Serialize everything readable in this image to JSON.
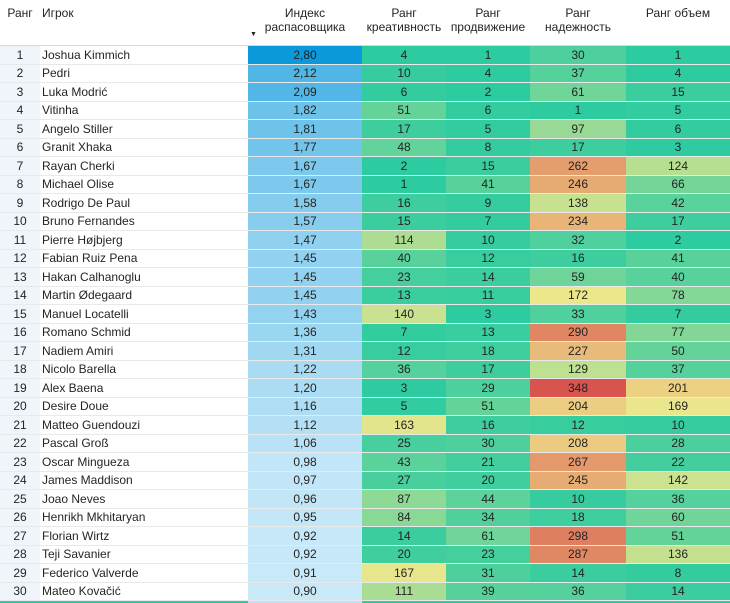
{
  "chart_data": {
    "type": "table",
    "columns": [
      {
        "id": "rank",
        "label": "Ранг",
        "sublabel": "",
        "align": "center",
        "sorted": false
      },
      {
        "id": "player",
        "label": "Игрок",
        "sublabel": "",
        "align": "left",
        "sorted": false
      },
      {
        "id": "index",
        "label": "Индекс",
        "sublabel": "распасовщика",
        "align": "center",
        "sorted": true
      },
      {
        "id": "creativity",
        "label": "Ранг",
        "sublabel": "креативность",
        "align": "center",
        "sorted": false
      },
      {
        "id": "progression",
        "label": "Ранг",
        "sublabel": "продвижение",
        "align": "center",
        "sorted": false
      },
      {
        "id": "reliability",
        "label": "Ранг",
        "sublabel": "надежность",
        "align": "center",
        "sorted": false
      },
      {
        "id": "volume",
        "label": "Ранг объем",
        "sublabel": "",
        "align": "center",
        "sorted": false
      }
    ],
    "rows": [
      {
        "rank": 1,
        "player": "Joshua Kimmich",
        "index": "2,80",
        "creativity": 4,
        "progression": 1,
        "reliability": 30,
        "volume": 1
      },
      {
        "rank": 2,
        "player": "Pedri",
        "index": "2,12",
        "creativity": 10,
        "progression": 4,
        "reliability": 37,
        "volume": 4
      },
      {
        "rank": 3,
        "player": "Luka Modrić",
        "index": "2,09",
        "creativity": 6,
        "progression": 2,
        "reliability": 61,
        "volume": 15
      },
      {
        "rank": 4,
        "player": "Vitinha",
        "index": "1,82",
        "creativity": 51,
        "progression": 6,
        "reliability": 1,
        "volume": 5
      },
      {
        "rank": 5,
        "player": "Angelo Stiller",
        "index": "1,81",
        "creativity": 17,
        "progression": 5,
        "reliability": 97,
        "volume": 6
      },
      {
        "rank": 6,
        "player": "Granit Xhaka",
        "index": "1,77",
        "creativity": 48,
        "progression": 8,
        "reliability": 17,
        "volume": 3
      },
      {
        "rank": 7,
        "player": "Rayan Cherki",
        "index": "1,67",
        "creativity": 2,
        "progression": 15,
        "reliability": 262,
        "volume": 124
      },
      {
        "rank": 8,
        "player": "Michael Olise",
        "index": "1,67",
        "creativity": 1,
        "progression": 41,
        "reliability": 246,
        "volume": 66
      },
      {
        "rank": 9,
        "player": "Rodrigo De Paul",
        "index": "1,58",
        "creativity": 16,
        "progression": 9,
        "reliability": 138,
        "volume": 42
      },
      {
        "rank": 10,
        "player": "Bruno Fernandes",
        "index": "1,57",
        "creativity": 15,
        "progression": 7,
        "reliability": 234,
        "volume": 17
      },
      {
        "rank": 11,
        "player": "Pierre Højbjerg",
        "index": "1,47",
        "creativity": 114,
        "progression": 10,
        "reliability": 32,
        "volume": 2
      },
      {
        "rank": 12,
        "player": "Fabian Ruiz Pena",
        "index": "1,45",
        "creativity": 40,
        "progression": 12,
        "reliability": 16,
        "volume": 41
      },
      {
        "rank": 13,
        "player": "Hakan Calhanoglu",
        "index": "1,45",
        "creativity": 23,
        "progression": 14,
        "reliability": 59,
        "volume": 40
      },
      {
        "rank": 14,
        "player": "Martin Ødegaard",
        "index": "1,45",
        "creativity": 13,
        "progression": 11,
        "reliability": 172,
        "volume": 78
      },
      {
        "rank": 15,
        "player": "Manuel Locatelli",
        "index": "1,43",
        "creativity": 140,
        "progression": 3,
        "reliability": 33,
        "volume": 7
      },
      {
        "rank": 16,
        "player": "Romano Schmid",
        "index": "1,36",
        "creativity": 7,
        "progression": 13,
        "reliability": 290,
        "volume": 77
      },
      {
        "rank": 17,
        "player": "Nadiem Amiri",
        "index": "1,31",
        "creativity": 12,
        "progression": 18,
        "reliability": 227,
        "volume": 50
      },
      {
        "rank": 18,
        "player": "Nicolo Barella",
        "index": "1,22",
        "creativity": 36,
        "progression": 17,
        "reliability": 129,
        "volume": 37
      },
      {
        "rank": 19,
        "player": "Alex Baena",
        "index": "1,20",
        "creativity": 3,
        "progression": 29,
        "reliability": 348,
        "volume": 201
      },
      {
        "rank": 20,
        "player": "Desire Doue",
        "index": "1,16",
        "creativity": 5,
        "progression": 51,
        "reliability": 204,
        "volume": 169
      },
      {
        "rank": 21,
        "player": "Matteo Guendouzi",
        "index": "1,12",
        "creativity": 163,
        "progression": 16,
        "reliability": 12,
        "volume": 10
      },
      {
        "rank": 22,
        "player": "Pascal Groß",
        "index": "1,06",
        "creativity": 25,
        "progression": 30,
        "reliability": 208,
        "volume": 28
      },
      {
        "rank": 23,
        "player": "Oscar Mingueza",
        "index": "0,98",
        "creativity": 43,
        "progression": 21,
        "reliability": 267,
        "volume": 22
      },
      {
        "rank": 24,
        "player": "James Maddison",
        "index": "0,97",
        "creativity": 27,
        "progression": 20,
        "reliability": 245,
        "volume": 142
      },
      {
        "rank": 25,
        "player": "Joao Neves",
        "index": "0,96",
        "creativity": 87,
        "progression": 44,
        "reliability": 10,
        "volume": 36
      },
      {
        "rank": 26,
        "player": "Henrikh Mkhitaryan",
        "index": "0,95",
        "creativity": 84,
        "progression": 34,
        "reliability": 18,
        "volume": 60
      },
      {
        "rank": 27,
        "player": "Florian Wirtz",
        "index": "0,92",
        "creativity": 14,
        "progression": 61,
        "reliability": 298,
        "volume": 51
      },
      {
        "rank": 28,
        "player": "Teji Savanier",
        "index": "0,92",
        "creativity": 20,
        "progression": 23,
        "reliability": 287,
        "volume": 136
      },
      {
        "rank": 29,
        "player": "Federico Valverde",
        "index": "0,91",
        "creativity": 167,
        "progression": 31,
        "reliability": 14,
        "volume": 8
      },
      {
        "rank": 30,
        "player": "Mateo Kovačić",
        "index": "0,90",
        "creativity": 111,
        "progression": 39,
        "reliability": 36,
        "volume": 14
      }
    ],
    "conditional_formatting": {
      "index_column_scale": {
        "min_value": 0.9,
        "max_value": 2.8,
        "min_color": "#C9E9F8",
        "max_color": "#0B99DC"
      },
      "rank_columns_scale": {
        "min_value": 1,
        "max_value": 348,
        "min_color": "#2CCBA0",
        "mid_color": "#F0E78C",
        "max_color": "#D8554F"
      }
    }
  },
  "ui": {
    "sort_icon": "▼",
    "text_color": "#252423",
    "grid_line_color": "#E9E9E9",
    "header_line_color": "#D6D6D6",
    "rank_col_bg": "#EFF5FA",
    "partial_row": {
      "index_color": "#BFE4F6",
      "other_color": "#2CCBA0"
    }
  }
}
